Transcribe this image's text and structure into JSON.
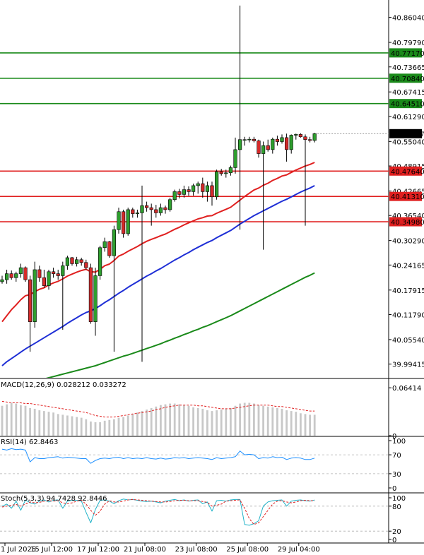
{
  "chart_data": [
    {
      "type": "candlestick",
      "panel": "price",
      "x_labels": [
        "1 Jul 2025",
        "15 Jul 12:00",
        "17 Jul 12:00",
        "21 Jul 08:00",
        "23 Jul 08:00",
        "25 Jul 08:00",
        "29 Jul 04:00"
      ],
      "y_ticks": [
        "40.86040",
        "40.79790",
        "40.73665",
        "40.67415",
        "40.61290",
        "40.55040",
        "40.48915",
        "40.42665",
        "40.36540",
        "40.30290",
        "40.24165",
        "40.17915",
        "40.11790",
        "40.05540",
        "39.99415"
      ],
      "ylim": [
        39.96,
        40.895
      ],
      "current_price": "40.56987",
      "horizontal_levels": [
        {
          "value": 40.7717,
          "label": "40.77170",
          "color": "#1a8a1a"
        },
        {
          "value": 40.7084,
          "label": "40.70840",
          "color": "#1a8a1a"
        },
        {
          "value": 40.6451,
          "label": "40.64510",
          "color": "#1a8a1a"
        },
        {
          "value": 40.4764,
          "label": "40.47640",
          "color": "#e02020"
        },
        {
          "value": 40.4131,
          "label": "40.41310",
          "color": "#e02020"
        },
        {
          "value": 40.3498,
          "label": "40.34980",
          "color": "#e02020"
        }
      ],
      "candles": [
        [
          40.2,
          40.215,
          40.195,
          40.205
        ],
        [
          40.205,
          40.23,
          40.195,
          40.22
        ],
        [
          40.22,
          40.228,
          40.205,
          40.21
        ],
        [
          40.21,
          40.225,
          40.2,
          40.22
        ],
        [
          40.22,
          40.245,
          40.21,
          40.235
        ],
        [
          40.235,
          40.238,
          40.2,
          40.205
        ],
        [
          40.205,
          40.215,
          40.025,
          40.1
        ],
        [
          40.1,
          40.25,
          40.085,
          40.23
        ],
        [
          40.23,
          40.24,
          40.2,
          40.21
        ],
        [
          40.21,
          40.23,
          40.185,
          40.19
        ],
        [
          40.19,
          40.23,
          40.18,
          40.225
        ],
        [
          40.225,
          40.235,
          40.21,
          40.22
        ],
        [
          40.22,
          40.23,
          40.205,
          40.215
        ],
        [
          40.215,
          40.25,
          40.08,
          40.24
        ],
        [
          40.24,
          40.265,
          40.23,
          40.26
        ],
        [
          40.26,
          40.262,
          40.24,
          40.245
        ],
        [
          40.245,
          40.262,
          40.238,
          40.255
        ],
        [
          40.255,
          40.26,
          40.24,
          40.248
        ],
        [
          40.248,
          40.255,
          40.23,
          40.235
        ],
        [
          40.235,
          40.245,
          40.095,
          40.1
        ],
        [
          40.1,
          40.235,
          40.065,
          40.215
        ],
        [
          40.215,
          40.29,
          40.205,
          40.285
        ],
        [
          40.285,
          40.31,
          40.275,
          40.3
        ],
        [
          40.3,
          40.302,
          40.26,
          40.265
        ],
        [
          40.265,
          40.34,
          40.025,
          40.33
        ],
        [
          40.33,
          40.385,
          40.32,
          40.375
        ],
        [
          40.375,
          40.38,
          40.31,
          40.32
        ],
        [
          40.32,
          40.385,
          40.315,
          40.38
        ],
        [
          40.38,
          40.385,
          40.36,
          40.37
        ],
        [
          40.37,
          40.38,
          40.36,
          40.372
        ],
        [
          40.372,
          40.44,
          40.0,
          40.39
        ],
        [
          40.39,
          40.4,
          40.375,
          40.385
        ],
        [
          40.385,
          40.395,
          40.34,
          40.38
        ],
        [
          40.38,
          40.392,
          40.36,
          40.372
        ],
        [
          40.372,
          40.395,
          40.365,
          40.385
        ],
        [
          40.385,
          40.39,
          40.37,
          40.38
        ],
        [
          40.38,
          40.41,
          40.375,
          40.405
        ],
        [
          40.405,
          40.43,
          40.4,
          40.425
        ],
        [
          40.425,
          40.432,
          40.408,
          40.418
        ],
        [
          40.418,
          40.44,
          40.41,
          40.43
        ],
        [
          40.43,
          40.438,
          40.415,
          40.425
        ],
        [
          40.425,
          40.445,
          40.415,
          40.44
        ],
        [
          40.44,
          40.45,
          40.42,
          40.445
        ],
        [
          40.445,
          40.46,
          40.41,
          40.425
        ],
        [
          40.425,
          40.45,
          40.4,
          40.44
        ],
        [
          40.44,
          40.45,
          40.39,
          40.412
        ],
        [
          40.412,
          40.48,
          40.405,
          40.475
        ],
        [
          40.475,
          40.482,
          40.465,
          40.47
        ],
        [
          40.47,
          40.48,
          40.46,
          40.472
        ],
        [
          40.472,
          40.49,
          40.465,
          40.485
        ],
        [
          40.485,
          40.56,
          40.47,
          40.53
        ],
        [
          40.53,
          40.89,
          40.33,
          40.555
        ],
        [
          40.555,
          40.562,
          40.54,
          40.555
        ],
        [
          40.555,
          40.562,
          40.548,
          40.556
        ],
        [
          40.556,
          40.562,
          40.548,
          40.552
        ],
        [
          40.552,
          40.555,
          40.51,
          40.52
        ],
        [
          40.52,
          40.55,
          40.28,
          40.54
        ],
        [
          40.54,
          40.555,
          40.525,
          40.53
        ],
        [
          40.53,
          40.56,
          40.52,
          40.556
        ],
        [
          40.556,
          40.565,
          40.54,
          40.55
        ],
        [
          40.55,
          40.568,
          40.545,
          40.56
        ],
        [
          40.56,
          40.57,
          40.5,
          40.53
        ],
        [
          40.53,
          40.568,
          40.52,
          40.566
        ],
        [
          40.566,
          40.57,
          40.555,
          40.568
        ],
        [
          40.568,
          40.571,
          40.56,
          40.562
        ],
        [
          40.562,
          40.568,
          40.34,
          40.555
        ],
        [
          40.555,
          40.562,
          40.548,
          40.553
        ],
        [
          40.553,
          40.572,
          40.548,
          40.57
        ]
      ],
      "ma_red": [
        40.1,
        40.115,
        40.13,
        40.142,
        40.155,
        40.165,
        40.168,
        40.175,
        40.181,
        40.185,
        40.192,
        40.197,
        40.201,
        40.207,
        40.214,
        40.219,
        40.224,
        40.228,
        40.231,
        40.225,
        40.224,
        40.231,
        40.24,
        40.244,
        40.253,
        40.264,
        40.269,
        40.276,
        40.282,
        40.288,
        40.295,
        40.301,
        40.306,
        40.31,
        40.315,
        40.319,
        40.325,
        40.331,
        40.336,
        40.342,
        40.347,
        40.352,
        40.357,
        40.36,
        40.364,
        40.365,
        40.371,
        40.376,
        40.381,
        40.386,
        40.395,
        40.404,
        40.413,
        40.421,
        40.429,
        40.434,
        40.441,
        40.446,
        40.453,
        40.458,
        40.464,
        40.467,
        40.473,
        40.479,
        40.484,
        40.489,
        40.493,
        40.498
      ],
      "ma_blue": [
        39.99,
        40.0,
        40.008,
        40.016,
        40.024,
        40.032,
        40.039,
        40.046,
        40.053,
        40.06,
        40.067,
        40.074,
        40.081,
        40.088,
        40.096,
        40.103,
        40.11,
        40.117,
        40.123,
        40.127,
        40.133,
        40.14,
        40.148,
        40.155,
        40.163,
        40.171,
        40.178,
        40.186,
        40.193,
        40.2,
        40.207,
        40.214,
        40.22,
        40.227,
        40.233,
        40.24,
        40.247,
        40.254,
        40.26,
        40.267,
        40.273,
        40.28,
        40.286,
        40.292,
        40.298,
        40.303,
        40.31,
        40.316,
        40.322,
        40.328,
        40.336,
        40.344,
        40.351,
        40.358,
        40.365,
        40.371,
        40.377,
        40.383,
        40.389,
        40.395,
        40.401,
        40.406,
        40.412,
        40.418,
        40.424,
        40.429,
        40.434,
        40.44
      ],
      "ma_green": [
        39.93,
        39.933,
        39.936,
        39.939,
        39.942,
        39.945,
        39.948,
        39.951,
        39.954,
        39.957,
        39.96,
        39.963,
        39.966,
        39.969,
        39.972,
        39.975,
        39.978,
        39.981,
        39.984,
        39.987,
        39.99,
        39.994,
        39.998,
        40.002,
        40.006,
        40.01,
        40.014,
        40.017,
        40.021,
        40.025,
        40.029,
        40.033,
        40.037,
        40.041,
        40.045,
        40.05,
        40.054,
        40.059,
        40.063,
        40.068,
        40.072,
        40.077,
        40.081,
        40.086,
        40.09,
        40.095,
        40.1,
        40.105,
        40.11,
        40.115,
        40.121,
        40.127,
        40.133,
        40.139,
        40.145,
        40.151,
        40.157,
        40.163,
        40.169,
        40.175,
        40.181,
        40.187,
        40.193,
        40.199,
        40.205,
        40.211,
        40.216,
        40.222
      ]
    },
    {
      "type": "bar",
      "panel": "macd",
      "label": "MACD(12,26,9) 0.028212 0.033272",
      "y_ticks": [
        "0.06414",
        "0"
      ],
      "ylim": [
        0,
        0.07
      ],
      "values": [
        0.04,
        0.042,
        0.044,
        0.043,
        0.041,
        0.04,
        0.037,
        0.036,
        0.034,
        0.033,
        0.032,
        0.031,
        0.029,
        0.028,
        0.027,
        0.026,
        0.025,
        0.024,
        0.022,
        0.019,
        0.018,
        0.018,
        0.02,
        0.021,
        0.022,
        0.024,
        0.025,
        0.027,
        0.029,
        0.031,
        0.033,
        0.035,
        0.037,
        0.039,
        0.041,
        0.042,
        0.043,
        0.043,
        0.042,
        0.041,
        0.04,
        0.038,
        0.037,
        0.036,
        0.034,
        0.033,
        0.034,
        0.035,
        0.036,
        0.037,
        0.04,
        0.043,
        0.044,
        0.044,
        0.043,
        0.041,
        0.04,
        0.039,
        0.038,
        0.037,
        0.036,
        0.034,
        0.033,
        0.032,
        0.03,
        0.029,
        0.028,
        0.028
      ],
      "signal": [
        0.046,
        0.045,
        0.044,
        0.044,
        0.044,
        0.043,
        0.043,
        0.042,
        0.041,
        0.04,
        0.039,
        0.038,
        0.037,
        0.036,
        0.035,
        0.034,
        0.033,
        0.032,
        0.031,
        0.029,
        0.027,
        0.026,
        0.025,
        0.025,
        0.025,
        0.026,
        0.027,
        0.028,
        0.029,
        0.03,
        0.031,
        0.032,
        0.033,
        0.035,
        0.036,
        0.038,
        0.039,
        0.04,
        0.041,
        0.041,
        0.041,
        0.041,
        0.04,
        0.04,
        0.039,
        0.038,
        0.037,
        0.036,
        0.036,
        0.036,
        0.037,
        0.038,
        0.039,
        0.04,
        0.041,
        0.041,
        0.041,
        0.041,
        0.04,
        0.039,
        0.039,
        0.038,
        0.037,
        0.036,
        0.035,
        0.034,
        0.033,
        0.033
      ]
    },
    {
      "type": "line",
      "panel": "rsi",
      "label": "RSI(14) 62.8463",
      "y_ticks": [
        "100",
        "70",
        "30",
        "0"
      ],
      "ylim": [
        0,
        100
      ],
      "values": [
        82,
        80,
        83,
        81,
        82,
        80,
        55,
        64,
        62,
        62,
        64,
        65,
        66,
        63,
        65,
        64,
        63,
        62,
        62,
        52,
        58,
        62,
        63,
        62,
        64,
        65,
        62,
        64,
        62,
        63,
        62,
        64,
        62,
        61,
        63,
        61,
        62,
        64,
        63,
        64,
        62,
        63,
        64,
        63,
        62,
        60,
        64,
        62,
        63,
        64,
        66,
        78,
        70,
        71,
        70,
        62,
        64,
        63,
        66,
        64,
        65,
        60,
        63,
        64,
        63,
        60,
        60,
        63
      ]
    },
    {
      "type": "line",
      "panel": "stoch",
      "label": "Stoch(5,3,3) 94.7428 92.8446",
      "y_ticks": [
        "100",
        "80",
        "20",
        "0"
      ],
      "ylim": [
        0,
        100
      ],
      "k": [
        80,
        85,
        75,
        92,
        70,
        95,
        88,
        85,
        92,
        95,
        90,
        94,
        95,
        75,
        92,
        94,
        94,
        92,
        65,
        40,
        72,
        94,
        95,
        92,
        86,
        93,
        97,
        95,
        96,
        94,
        92,
        91,
        92,
        90,
        88,
        92,
        94,
        96,
        93,
        95,
        92,
        94,
        95,
        86,
        90,
        68,
        93,
        94,
        92,
        95,
        96,
        96,
        36,
        34,
        38,
        45,
        80,
        90,
        93,
        94,
        95,
        80,
        92,
        94,
        95,
        93,
        92,
        94.7
      ],
      "d": [
        78,
        80,
        82,
        84,
        80,
        85,
        90,
        88,
        89,
        92,
        93,
        92,
        93,
        88,
        86,
        88,
        92,
        94,
        85,
        70,
        58,
        68,
        85,
        93,
        90,
        90,
        92,
        95,
        96,
        95,
        94,
        93,
        92,
        91,
        90,
        90,
        91,
        93,
        94,
        94,
        93,
        93,
        93,
        91,
        89,
        80,
        82,
        85,
        92,
        93,
        94,
        95,
        75,
        50,
        36,
        40,
        55,
        70,
        85,
        92,
        93,
        90,
        88,
        90,
        93,
        94,
        93,
        92.8
      ]
    }
  ]
}
